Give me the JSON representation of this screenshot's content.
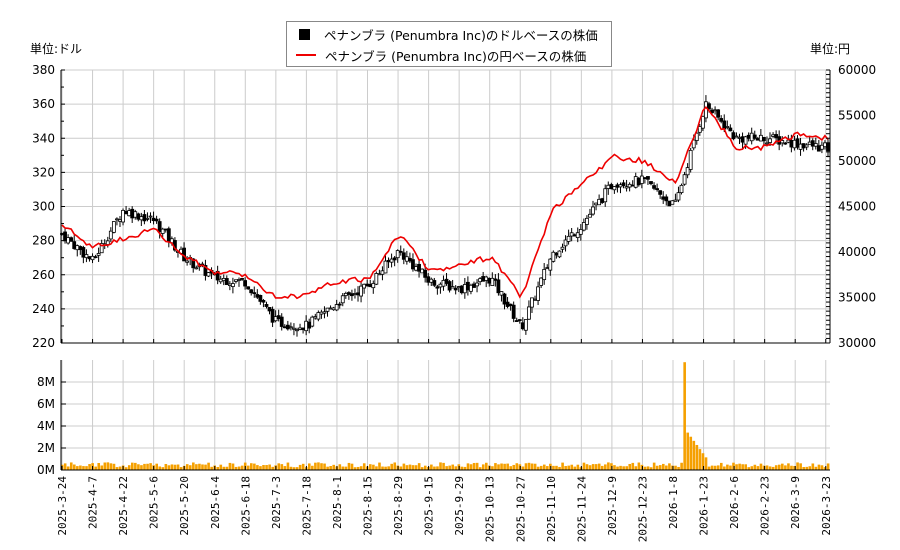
{
  "legend": {
    "usd_label": "ペナンブラ (Penumbra Inc)のドルベースの株価",
    "jpy_label": "ペナンブラ (Penumbra Inc)の円ベースの株価"
  },
  "units": {
    "left": "単位:ドル",
    "right": "単位:円"
  },
  "colors": {
    "candle": "#000000",
    "jpy_line": "#ee0000",
    "volume": "#f5a000",
    "grid": "#cccccc"
  },
  "chart_data": [
    {
      "type": "candlestick+line",
      "title": "ペナンブラ (Penumbra Inc) 株価",
      "series": [
        {
          "name": "ペナンブラ (Penumbra Inc)のドルベースの株価",
          "axis": "left",
          "type": "candlestick"
        },
        {
          "name": "ペナンブラ (Penumbra Inc)の円ベースの株価",
          "axis": "right",
          "type": "line"
        }
      ],
      "ylabel_left": "単位:ドル",
      "ylabel_right": "単位:円",
      "ylim_left": [
        220,
        380
      ],
      "ylim_right": [
        30000,
        60000
      ],
      "yticks_left": [
        220,
        240,
        260,
        280,
        300,
        320,
        340,
        360,
        380
      ],
      "yticks_right": [
        30000,
        35000,
        40000,
        45000,
        50000,
        55000,
        60000
      ],
      "grid": true,
      "legend_position": "top-center",
      "categories": [
        "2025-3-24",
        "2025-4-7",
        "2025-4-22",
        "2025-5-6",
        "2025-5-20",
        "2025-6-4",
        "2025-6-18",
        "2025-7-3",
        "2025-7-18",
        "2025-8-1",
        "2025-8-15",
        "2025-8-29",
        "2025-9-15",
        "2025-9-29",
        "2025-10-13",
        "2025-10-27",
        "2025-11-10",
        "2025-11-24",
        "2025-12-9",
        "2025-12-23",
        "2026-1-8",
        "2026-1-23",
        "2026-2-6",
        "2026-2-23",
        "2026-3-9",
        "2026-3-23"
      ],
      "usd_close": [
        284,
        268,
        298,
        292,
        270,
        258,
        256,
        232,
        230,
        244,
        254,
        274,
        256,
        252,
        258,
        229,
        272,
        290,
        314,
        315,
        300,
        360,
        340,
        340,
        337,
        334
      ],
      "jpy_close": [
        43000,
        40500,
        41500,
        42500,
        39500,
        37800,
        37500,
        35000,
        35300,
        36800,
        37000,
        42000,
        38000,
        38500,
        39500,
        35000,
        44500,
        47500,
        50500,
        50000,
        47500,
        56000,
        51500,
        51500,
        53000,
        52500
      ]
    },
    {
      "type": "bar",
      "title": "出来高",
      "categories": [
        "2025-3-24",
        "2025-4-7",
        "2025-4-22",
        "2025-5-6",
        "2025-5-20",
        "2025-6-4",
        "2025-6-18",
        "2025-7-3",
        "2025-7-18",
        "2025-8-1",
        "2025-8-15",
        "2025-8-29",
        "2025-9-15",
        "2025-9-29",
        "2025-10-13",
        "2025-10-27",
        "2025-11-10",
        "2025-11-24",
        "2025-12-9",
        "2025-12-23",
        "2026-1-8",
        "2026-1-23",
        "2026-2-6",
        "2026-2-23",
        "2026-3-9",
        "2026-3-23"
      ],
      "ylim": [
        0,
        10000000
      ],
      "yticks": [
        "0M",
        "2M",
        "4M",
        "6M",
        "8M"
      ],
      "peak_volume": 9800000,
      "peak_date": "2026-1-14",
      "typical_volume": 500000
    }
  ],
  "axes": {
    "left_ticks": [
      "380",
      "360",
      "340",
      "320",
      "300",
      "280",
      "260",
      "240",
      "220"
    ],
    "right_ticks": [
      "60000",
      "55000",
      "50000",
      "45000",
      "40000",
      "35000",
      "30000"
    ],
    "vol_ticks": [
      "8M",
      "6M",
      "4M",
      "2M",
      "0M"
    ],
    "x_ticks": [
      "2025-3-24",
      "2025-4-7",
      "2025-4-22",
      "2025-5-6",
      "2025-5-20",
      "2025-6-4",
      "2025-6-18",
      "2025-7-3",
      "2025-7-18",
      "2025-8-1",
      "2025-8-15",
      "2025-8-29",
      "2025-9-15",
      "2025-9-29",
      "2025-10-13",
      "2025-10-27",
      "2025-11-10",
      "2025-11-24",
      "2025-12-9",
      "2025-12-23",
      "2026-1-8",
      "2026-1-23",
      "2026-2-6",
      "2026-2-23",
      "2026-3-9",
      "2026-3-23"
    ]
  }
}
